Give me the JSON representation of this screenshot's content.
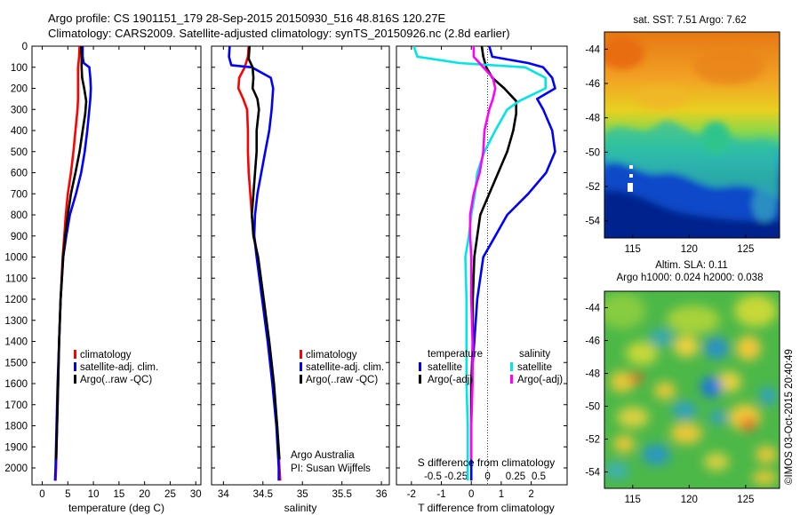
{
  "header": {
    "line1": "Argo profile: CS 1901151_179 28-Sep-2015 20150930_516 48.816S 120.27E",
    "line2": "Climatology: CARS2009. Satellite-adjusted climatology: synTS_20150926.nc (2.8d earlier)"
  },
  "colors": {
    "climatology": "#ff0000",
    "satellite": "#0000ff",
    "argo": "#000000",
    "cyan": "#00e5e5",
    "magenta": "#ff00ff"
  },
  "chart_data": [
    {
      "type": "line",
      "title": "",
      "xlabel": "temperature (deg C)",
      "ylabel": "",
      "xlim": [
        -2,
        31
      ],
      "ylim": [
        2080,
        0
      ],
      "y_reversed": true,
      "xticks": [
        "0",
        "5",
        "10",
        "15",
        "20",
        "25",
        "30"
      ],
      "yticks": [
        "0",
        "100",
        "200",
        "300",
        "400",
        "500",
        "600",
        "700",
        "800",
        "900",
        "1000",
        "1100",
        "1200",
        "1300",
        "1400",
        "1500",
        "1600",
        "1700",
        "1800",
        "1900",
        "2000"
      ],
      "legend": [
        "climatology",
        "satellite-adj. clim.",
        "Argo(..raw -QC)"
      ],
      "series": [
        {
          "name": "climatology",
          "color": "#ff0000",
          "points": [
            [
              7.3,
              0
            ],
            [
              7.2,
              50
            ],
            [
              7.0,
              100
            ],
            [
              7.0,
              150
            ],
            [
              7.0,
              200
            ],
            [
              7.0,
              250
            ],
            [
              6.9,
              300
            ],
            [
              6.5,
              400
            ],
            [
              6.1,
              500
            ],
            [
              5.6,
              600
            ],
            [
              5.0,
              700
            ],
            [
              4.6,
              800
            ],
            [
              4.3,
              900
            ],
            [
              4.0,
              1000
            ],
            [
              3.6,
              1200
            ],
            [
              3.3,
              1400
            ],
            [
              3.1,
              1600
            ],
            [
              2.9,
              1800
            ],
            [
              2.7,
              2000
            ],
            [
              2.6,
              2060
            ]
          ]
        },
        {
          "name": "satellite-adj. clim.",
          "color": "#0000ff",
          "points": [
            [
              7.9,
              0
            ],
            [
              7.9,
              50
            ],
            [
              8.1,
              80
            ],
            [
              9.2,
              100
            ],
            [
              9.4,
              150
            ],
            [
              9.5,
              200
            ],
            [
              9.4,
              250
            ],
            [
              9.2,
              300
            ],
            [
              8.8,
              400
            ],
            [
              8.3,
              500
            ],
            [
              7.6,
              600
            ],
            [
              6.6,
              700
            ],
            [
              5.4,
              800
            ],
            [
              4.7,
              900
            ],
            [
              4.1,
              1000
            ],
            [
              3.6,
              1200
            ],
            [
              3.3,
              1400
            ],
            [
              3.0,
              1600
            ],
            [
              2.8,
              1800
            ],
            [
              2.6,
              2000
            ],
            [
              2.5,
              2060
            ]
          ]
        },
        {
          "name": "Argo(..raw -QC)",
          "color": "#000000",
          "points": [
            [
              7.6,
              0
            ],
            [
              7.7,
              50
            ],
            [
              7.7,
              100
            ],
            [
              7.8,
              150
            ],
            [
              8.2,
              200
            ],
            [
              8.6,
              260
            ],
            [
              8.4,
              320
            ],
            [
              7.9,
              400
            ],
            [
              7.3,
              500
            ],
            [
              6.5,
              600
            ],
            [
              5.6,
              700
            ],
            [
              5.0,
              800
            ],
            [
              4.5,
              900
            ],
            [
              4.1,
              1000
            ],
            [
              3.6,
              1200
            ],
            [
              3.3,
              1400
            ],
            [
              3.1,
              1600
            ],
            [
              2.9,
              1800
            ],
            [
              2.7,
              1960
            ]
          ]
        }
      ]
    },
    {
      "type": "line",
      "title": "",
      "xlabel": "salinity",
      "ylabel": "",
      "xlim": [
        33.85,
        36.1
      ],
      "ylim": [
        2080,
        0
      ],
      "y_reversed": true,
      "xticks": [
        "34",
        "34.5",
        "35",
        "35.5",
        "36"
      ],
      "yticks": [],
      "legend": [
        "climatology",
        "satellite-adj. clim.",
        "Argo(..raw -QC)"
      ],
      "annotations": [
        "Argo Australia",
        "PI: Susan Wijffels"
      ],
      "series": [
        {
          "name": "climatology",
          "color": "#ff0000",
          "points": [
            [
              34.32,
              0
            ],
            [
              34.31,
              50
            ],
            [
              34.27,
              100
            ],
            [
              34.2,
              150
            ],
            [
              34.19,
              200
            ],
            [
              34.25,
              250
            ],
            [
              34.3,
              300
            ],
            [
              34.31,
              400
            ],
            [
              34.31,
              500
            ],
            [
              34.32,
              600
            ],
            [
              34.34,
              700
            ],
            [
              34.36,
              800
            ],
            [
              34.39,
              900
            ],
            [
              34.43,
              1000
            ],
            [
              34.5,
              1200
            ],
            [
              34.57,
              1400
            ],
            [
              34.63,
              1600
            ],
            [
              34.68,
              1800
            ],
            [
              34.71,
              2000
            ],
            [
              34.72,
              2060
            ]
          ]
        },
        {
          "name": "satellite-adj. clim.",
          "color": "#0000ff",
          "points": [
            [
              34.08,
              0
            ],
            [
              34.07,
              50
            ],
            [
              34.1,
              90
            ],
            [
              34.36,
              100
            ],
            [
              34.6,
              150
            ],
            [
              34.63,
              200
            ],
            [
              34.61,
              300
            ],
            [
              34.58,
              400
            ],
            [
              34.53,
              500
            ],
            [
              34.48,
              600
            ],
            [
              34.43,
              700
            ],
            [
              34.4,
              800
            ],
            [
              34.39,
              900
            ],
            [
              34.42,
              1000
            ],
            [
              34.49,
              1200
            ],
            [
              34.56,
              1400
            ],
            [
              34.62,
              1600
            ],
            [
              34.67,
              1800
            ],
            [
              34.7,
              2000
            ],
            [
              34.7,
              2060
            ]
          ]
        },
        {
          "name": "Argo(..raw -QC)",
          "color": "#000000",
          "points": [
            [
              34.33,
              0
            ],
            [
              34.32,
              60
            ],
            [
              34.37,
              100
            ],
            [
              34.38,
              150
            ],
            [
              34.37,
              200
            ],
            [
              34.43,
              250
            ],
            [
              34.45,
              300
            ],
            [
              34.42,
              400
            ],
            [
              34.42,
              500
            ],
            [
              34.4,
              600
            ],
            [
              34.38,
              700
            ],
            [
              34.36,
              800
            ],
            [
              34.38,
              900
            ],
            [
              34.44,
              1000
            ],
            [
              34.51,
              1200
            ],
            [
              34.58,
              1400
            ],
            [
              34.64,
              1600
            ],
            [
              34.68,
              1800
            ],
            [
              34.71,
              1960
            ]
          ]
        }
      ]
    },
    {
      "type": "line",
      "title": "",
      "xlabel": "T difference from climatology",
      "xlabel2": "S difference from climatology",
      "ylabel": "",
      "xlim": [
        -2.5,
        3.2
      ],
      "ylim": [
        2080,
        0
      ],
      "y_reversed": true,
      "xticks": [
        "-2",
        "-1",
        "0",
        "1",
        "2"
      ],
      "xticks2": [
        "-0.5",
        "-0.25",
        "0",
        "0.25",
        "0.5"
      ],
      "yticks": [],
      "legend_headers": [
        "temperature",
        "salinity"
      ],
      "legend": [
        "satellite",
        "Argo(-adj)",
        "satellite",
        "Argo(-adj)"
      ],
      "series": [
        {
          "name": "satellite",
          "group": "temperature",
          "color": "#0000ff",
          "points": [
            [
              0.6,
              0
            ],
            [
              0.7,
              50
            ],
            [
              1.9,
              80
            ],
            [
              2.4,
              100
            ],
            [
              2.7,
              150
            ],
            [
              2.8,
              200
            ],
            [
              2.2,
              250
            ],
            [
              2.4,
              300
            ],
            [
              2.7,
              400
            ],
            [
              2.8,
              500
            ],
            [
              2.5,
              600
            ],
            [
              1.9,
              700
            ],
            [
              1.2,
              800
            ],
            [
              0.8,
              900
            ],
            [
              0.4,
              1000
            ],
            [
              0.2,
              1200
            ],
            [
              0.1,
              1400
            ],
            [
              0.0,
              1600
            ],
            [
              0.0,
              1800
            ],
            [
              0.0,
              2000
            ],
            [
              0.0,
              2060
            ]
          ]
        },
        {
          "name": "Argo(-adj)",
          "group": "temperature",
          "color": "#000000",
          "points": [
            [
              0.35,
              0
            ],
            [
              0.4,
              50
            ],
            [
              0.5,
              100
            ],
            [
              0.7,
              150
            ],
            [
              1.1,
              200
            ],
            [
              1.5,
              260
            ],
            [
              1.5,
              320
            ],
            [
              1.4,
              400
            ],
            [
              1.2,
              500
            ],
            [
              0.9,
              600
            ],
            [
              0.6,
              700
            ],
            [
              0.3,
              800
            ],
            [
              0.2,
              900
            ],
            [
              0.1,
              1000
            ],
            [
              0.05,
              1200
            ],
            [
              0.05,
              1400
            ],
            [
              0.0,
              1600
            ],
            [
              0.0,
              1800
            ],
            [
              0.0,
              1960
            ]
          ]
        },
        {
          "name": "satellite",
          "group": "salinity",
          "color": "#00e5e5",
          "points": [
            [
              -0.48,
              0
            ],
            [
              -0.45,
              50
            ],
            [
              -0.1,
              80
            ],
            [
              0.45,
              100
            ],
            [
              0.62,
              150
            ],
            [
              0.62,
              200
            ],
            [
              0.4,
              260
            ],
            [
              0.3,
              300
            ],
            [
              0.2,
              400
            ],
            [
              0.11,
              500
            ],
            [
              0.05,
              600
            ],
            [
              0.03,
              700
            ],
            [
              0.0,
              800
            ],
            [
              -0.02,
              900
            ],
            [
              -0.05,
              1000
            ],
            [
              -0.04,
              1200
            ],
            [
              -0.04,
              1400
            ],
            [
              -0.04,
              1600
            ],
            [
              -0.03,
              1800
            ],
            [
              -0.03,
              2000
            ],
            [
              -0.03,
              2060
            ]
          ]
        },
        {
          "name": "Argo(-adj)",
          "group": "salinity",
          "color": "#ff00ff",
          "points": [
            [
              0.02,
              0
            ],
            [
              0.02,
              50
            ],
            [
              0.1,
              100
            ],
            [
              0.18,
              150
            ],
            [
              0.2,
              200
            ],
            [
              0.18,
              250
            ],
            [
              0.15,
              300
            ],
            [
              0.11,
              400
            ],
            [
              0.1,
              500
            ],
            [
              0.07,
              600
            ],
            [
              0.02,
              700
            ],
            [
              -0.01,
              800
            ],
            [
              -0.01,
              900
            ],
            [
              0.0,
              1000
            ],
            [
              0.0,
              1200
            ],
            [
              0.01,
              1400
            ],
            [
              0.01,
              1600
            ],
            [
              0.0,
              1800
            ],
            [
              0.0,
              1960
            ]
          ]
        }
      ]
    },
    {
      "type": "heatmap",
      "title": "sat. SST: 7.51  Argo: 7.62",
      "xlim": [
        112.5,
        128
      ],
      "ylim": [
        -55,
        -43
      ],
      "xticks": [
        "115",
        "120",
        "125"
      ],
      "yticks": [
        "-44",
        "-46",
        "-48",
        "-50",
        "-52",
        "-54"
      ]
    },
    {
      "type": "heatmap",
      "title": "Altim. SLA: 0.11",
      "subtitle": "Argo h1000: 0.024 h2000: 0.038",
      "xlim": [
        112.5,
        128
      ],
      "ylim": [
        -55,
        -43
      ],
      "xticks": [
        "115",
        "120",
        "125"
      ],
      "yticks": [
        "-44",
        "-46",
        "-48",
        "-50",
        "-52",
        "-54"
      ]
    }
  ],
  "footer": {
    "credit": "©IMOS 03-Oct-2015 20:40:49"
  }
}
